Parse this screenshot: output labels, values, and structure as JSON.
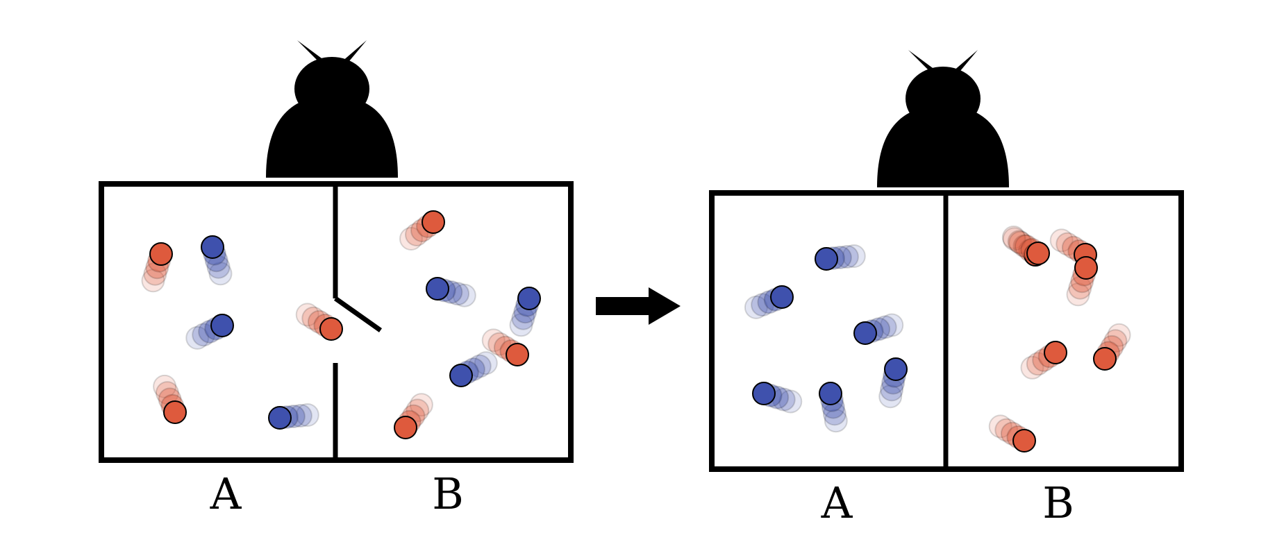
{
  "colors": {
    "red": "#de5a3d",
    "blue": "#3f51ad",
    "outline": "#000000",
    "background": "#ffffff"
  },
  "icons": [
    "demon-silhouette-icon",
    "arrow-right-icon",
    "trapdoor-icon"
  ],
  "panels": [
    {
      "name": "before",
      "door": "open",
      "labels": {
        "left": "A",
        "right": "B"
      }
    },
    {
      "name": "after",
      "door": "closed",
      "labels": {
        "left": "A",
        "right": "B"
      }
    }
  ]
}
